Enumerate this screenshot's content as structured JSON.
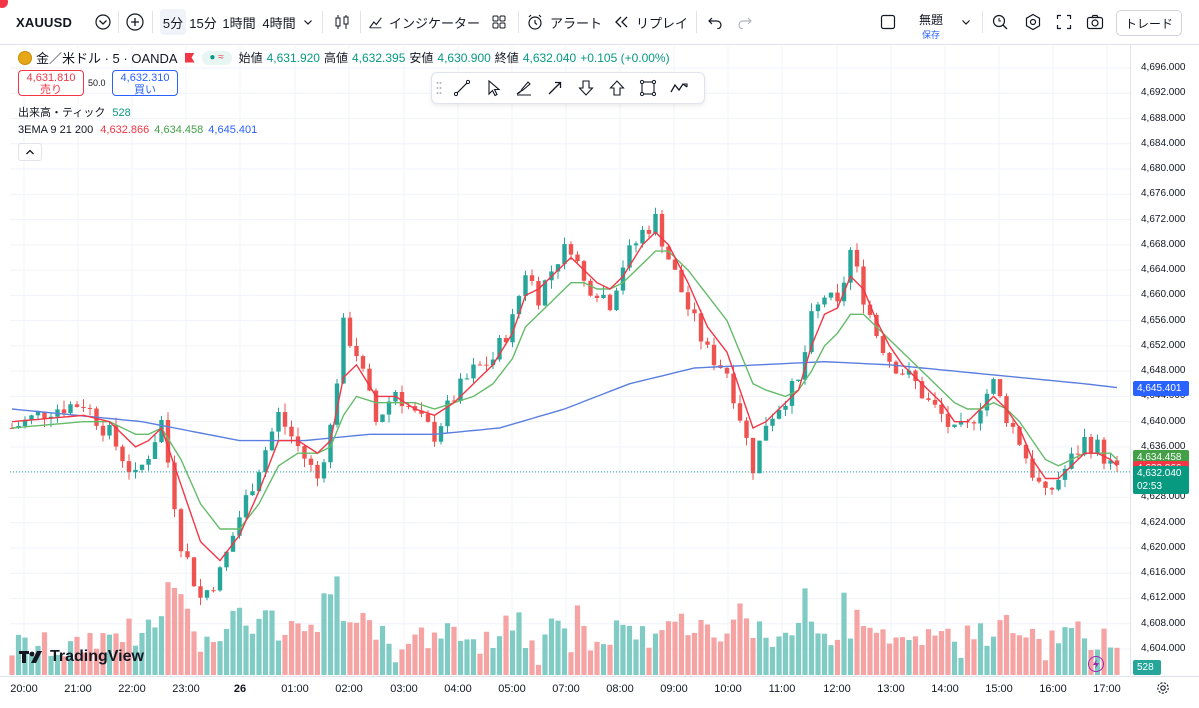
{
  "topbar": {
    "symbol": "XAUUSD",
    "intervals": [
      "5分",
      "15分",
      "1時間",
      "4時間"
    ],
    "indicators_label": "インジケーター",
    "alert_label": "アラート",
    "replay_label": "リプレイ",
    "layout_name": "無題",
    "layout_status": "保存",
    "trade_label": "トレード"
  },
  "legend": {
    "title": "金／米ドル · 5 · OANDA",
    "open_label": "始値",
    "open": "4,631.920",
    "high_label": "高値",
    "high": "4,632.395",
    "low_label": "安値",
    "low": "4,630.900",
    "close_label": "終値",
    "close": "4,632.040",
    "change": "+0.105 (+0.00%)",
    "sell_price": "4,631.810",
    "sell_label": "売り",
    "spread": "50.0",
    "buy_price": "4,632.310",
    "buy_label": "買い",
    "volume_label": "出来高・ティック",
    "volume_value": "528",
    "ema_label": "3EMA 9 21 200",
    "ema9": "4,632.866",
    "ema21": "4,634.458",
    "ema200": "4,645.401"
  },
  "colors": {
    "up": "#26a69a",
    "down": "#ef5350",
    "ema9": "#f23645",
    "ema21": "#66bb6a",
    "ema200": "#5b7fe0",
    "vol_up": "#80cbc4",
    "vol_down": "#f5a3a3"
  },
  "price_axis": {
    "ticks": [
      "4,696.000",
      "4,692.000",
      "4,688.000",
      "4,684.000",
      "4,680.000",
      "4,676.000",
      "4,672.000",
      "4,668.000",
      "4,664.000",
      "4,660.000",
      "4,656.000",
      "4,652.000",
      "4,648.000",
      "4,644.000",
      "4,640.000",
      "4,636.000",
      "4,632.000",
      "4,628.000",
      "4,624.000",
      "4,620.000",
      "4,616.000",
      "4,612.000",
      "4,608.000",
      "4,604.000"
    ],
    "tag_ema200": "4,645.401",
    "tag_ema21": "4,634.458",
    "tag_ema9": "4,632.866",
    "tag_last": "4,632.040",
    "countdown": "02:53",
    "tag_volume": "528"
  },
  "time_axis": {
    "ticks": [
      "20:00",
      "21:00",
      "22:00",
      "23:00",
      "26",
      "01:00",
      "02:00",
      "03:00",
      "04:00",
      "05:00",
      "07:00",
      "08:00",
      "09:00",
      "10:00",
      "11:00",
      "12:00",
      "13:00",
      "14:00",
      "15:00",
      "16:00",
      "17:00"
    ]
  },
  "branding": {
    "logo_text": "TradingView"
  },
  "chart_data": {
    "type": "candlestick",
    "symbol": "XAUUSD",
    "interval": "5",
    "ylim": [
      4602,
      4698
    ],
    "close_path": [
      [
        0,
        4639
      ],
      [
        6,
        4642
      ],
      [
        11,
        4643
      ],
      [
        15,
        4638
      ],
      [
        19,
        4631
      ],
      [
        21,
        4635
      ],
      [
        23,
        4640
      ],
      [
        26,
        4621
      ],
      [
        29,
        4612
      ],
      [
        32,
        4616
      ],
      [
        35,
        4625
      ],
      [
        38,
        4633
      ],
      [
        41,
        4641
      ],
      [
        44,
        4636
      ],
      [
        47,
        4631
      ],
      [
        49,
        4639
      ],
      [
        51,
        4655
      ],
      [
        53,
        4651
      ],
      [
        56,
        4640
      ],
      [
        59,
        4645
      ],
      [
        62,
        4641
      ],
      [
        65,
        4638
      ],
      [
        68,
        4644
      ],
      [
        71,
        4648
      ],
      [
        74,
        4650
      ],
      [
        77,
        4656
      ],
      [
        79,
        4664
      ],
      [
        81,
        4660
      ],
      [
        84,
        4666
      ],
      [
        86,
        4668
      ],
      [
        88,
        4662
      ],
      [
        90,
        4661
      ],
      [
        92,
        4659
      ],
      [
        94,
        4665
      ],
      [
        97,
        4670
      ],
      [
        99,
        4672
      ],
      [
        101,
        4666
      ],
      [
        104,
        4658
      ],
      [
        107,
        4651
      ],
      [
        110,
        4648
      ],
      [
        112,
        4641
      ],
      [
        114,
        4633
      ],
      [
        116,
        4640
      ],
      [
        119,
        4644
      ],
      [
        121,
        4646
      ],
      [
        123,
        4656
      ],
      [
        125,
        4660
      ],
      [
        127,
        4658
      ],
      [
        129,
        4667
      ],
      [
        131,
        4660
      ],
      [
        133,
        4654
      ],
      [
        135,
        4650
      ],
      [
        137,
        4648
      ],
      [
        139,
        4646
      ],
      [
        141,
        4643
      ],
      [
        143,
        4641
      ],
      [
        145,
        4638
      ],
      [
        147,
        4639
      ],
      [
        149,
        4643
      ],
      [
        151,
        4646
      ],
      [
        153,
        4641
      ],
      [
        155,
        4637
      ],
      [
        157,
        4632
      ],
      [
        159,
        4628
      ],
      [
        161,
        4631
      ],
      [
        163,
        4634
      ],
      [
        165,
        4637
      ],
      [
        167,
        4636
      ],
      [
        169,
        4633
      ],
      [
        170,
        4632
      ]
    ],
    "ema9_path": [
      [
        0,
        4640
      ],
      [
        11,
        4641
      ],
      [
        15,
        4640
      ],
      [
        19,
        4636
      ],
      [
        21,
        4637
      ],
      [
        23,
        4639
      ],
      [
        26,
        4630
      ],
      [
        29,
        4621
      ],
      [
        32,
        4618
      ],
      [
        35,
        4622
      ],
      [
        38,
        4629
      ],
      [
        41,
        4637
      ],
      [
        44,
        4637
      ],
      [
        47,
        4635
      ],
      [
        49,
        4637
      ],
      [
        51,
        4647
      ],
      [
        53,
        4649
      ],
      [
        56,
        4644
      ],
      [
        59,
        4644
      ],
      [
        62,
        4642
      ],
      [
        65,
        4641
      ],
      [
        68,
        4643
      ],
      [
        71,
        4646
      ],
      [
        74,
        4649
      ],
      [
        77,
        4654
      ],
      [
        79,
        4660
      ],
      [
        81,
        4661
      ],
      [
        84,
        4664
      ],
      [
        86,
        4666
      ],
      [
        88,
        4664
      ],
      [
        90,
        4662
      ],
      [
        92,
        4661
      ],
      [
        94,
        4663
      ],
      [
        97,
        4668
      ],
      [
        99,
        4670
      ],
      [
        101,
        4668
      ],
      [
        104,
        4662
      ],
      [
        107,
        4655
      ],
      [
        110,
        4651
      ],
      [
        112,
        4645
      ],
      [
        114,
        4639
      ],
      [
        116,
        4640
      ],
      [
        119,
        4643
      ],
      [
        121,
        4645
      ],
      [
        123,
        4652
      ],
      [
        125,
        4657
      ],
      [
        127,
        4658
      ],
      [
        129,
        4663
      ],
      [
        131,
        4661
      ],
      [
        133,
        4656
      ],
      [
        135,
        4652
      ],
      [
        137,
        4649
      ],
      [
        139,
        4647
      ],
      [
        141,
        4645
      ],
      [
        143,
        4643
      ],
      [
        145,
        4640
      ],
      [
        147,
        4640
      ],
      [
        149,
        4642
      ],
      [
        151,
        4644
      ],
      [
        153,
        4642
      ],
      [
        155,
        4639
      ],
      [
        157,
        4634
      ],
      [
        159,
        4631
      ],
      [
        161,
        4631
      ],
      [
        163,
        4633
      ],
      [
        165,
        4635
      ],
      [
        167,
        4635
      ],
      [
        169,
        4634
      ],
      [
        170,
        4633
      ]
    ],
    "ema21_path": [
      [
        0,
        4639
      ],
      [
        11,
        4640
      ],
      [
        15,
        4640
      ],
      [
        19,
        4638
      ],
      [
        21,
        4638
      ],
      [
        23,
        4639
      ],
      [
        26,
        4634
      ],
      [
        29,
        4627
      ],
      [
        32,
        4623
      ],
      [
        35,
        4623
      ],
      [
        38,
        4627
      ],
      [
        41,
        4633
      ],
      [
        44,
        4635
      ],
      [
        47,
        4635
      ],
      [
        49,
        4636
      ],
      [
        51,
        4641
      ],
      [
        53,
        4644
      ],
      [
        56,
        4643
      ],
      [
        59,
        4643
      ],
      [
        62,
        4643
      ],
      [
        65,
        4642
      ],
      [
        68,
        4643
      ],
      [
        71,
        4644
      ],
      [
        74,
        4646
      ],
      [
        77,
        4650
      ],
      [
        79,
        4655
      ],
      [
        81,
        4657
      ],
      [
        84,
        4660
      ],
      [
        86,
        4662
      ],
      [
        88,
        4662
      ],
      [
        90,
        4661
      ],
      [
        92,
        4661
      ],
      [
        94,
        4662
      ],
      [
        97,
        4665
      ],
      [
        99,
        4667
      ],
      [
        101,
        4667
      ],
      [
        104,
        4664
      ],
      [
        107,
        4660
      ],
      [
        110,
        4656
      ],
      [
        112,
        4651
      ],
      [
        114,
        4646
      ],
      [
        116,
        4645
      ],
      [
        119,
        4644
      ],
      [
        121,
        4645
      ],
      [
        123,
        4648
      ],
      [
        125,
        4652
      ],
      [
        127,
        4654
      ],
      [
        129,
        4657
      ],
      [
        131,
        4657
      ],
      [
        133,
        4655
      ],
      [
        135,
        4653
      ],
      [
        137,
        4651
      ],
      [
        139,
        4649
      ],
      [
        141,
        4647
      ],
      [
        143,
        4645
      ],
      [
        145,
        4643
      ],
      [
        147,
        4642
      ],
      [
        149,
        4642
      ],
      [
        151,
        4643
      ],
      [
        153,
        4642
      ],
      [
        155,
        4640
      ],
      [
        157,
        4637
      ],
      [
        159,
        4634
      ],
      [
        161,
        4633
      ],
      [
        163,
        4634
      ],
      [
        165,
        4635
      ],
      [
        167,
        4635
      ],
      [
        169,
        4635
      ],
      [
        170,
        4634
      ]
    ],
    "ema200_path": [
      [
        0,
        4642
      ],
      [
        20,
        4640
      ],
      [
        35,
        4637
      ],
      [
        45,
        4637
      ],
      [
        55,
        4638
      ],
      [
        65,
        4638
      ],
      [
        75,
        4639
      ],
      [
        85,
        4642
      ],
      [
        95,
        4646
      ],
      [
        105,
        4648.5
      ],
      [
        115,
        4649
      ],
      [
        125,
        4649.5
      ],
      [
        135,
        4649
      ],
      [
        145,
        4648
      ],
      [
        155,
        4647
      ],
      [
        165,
        4646
      ],
      [
        170,
        4645.4
      ]
    ],
    "last_price": 4632.04
  }
}
